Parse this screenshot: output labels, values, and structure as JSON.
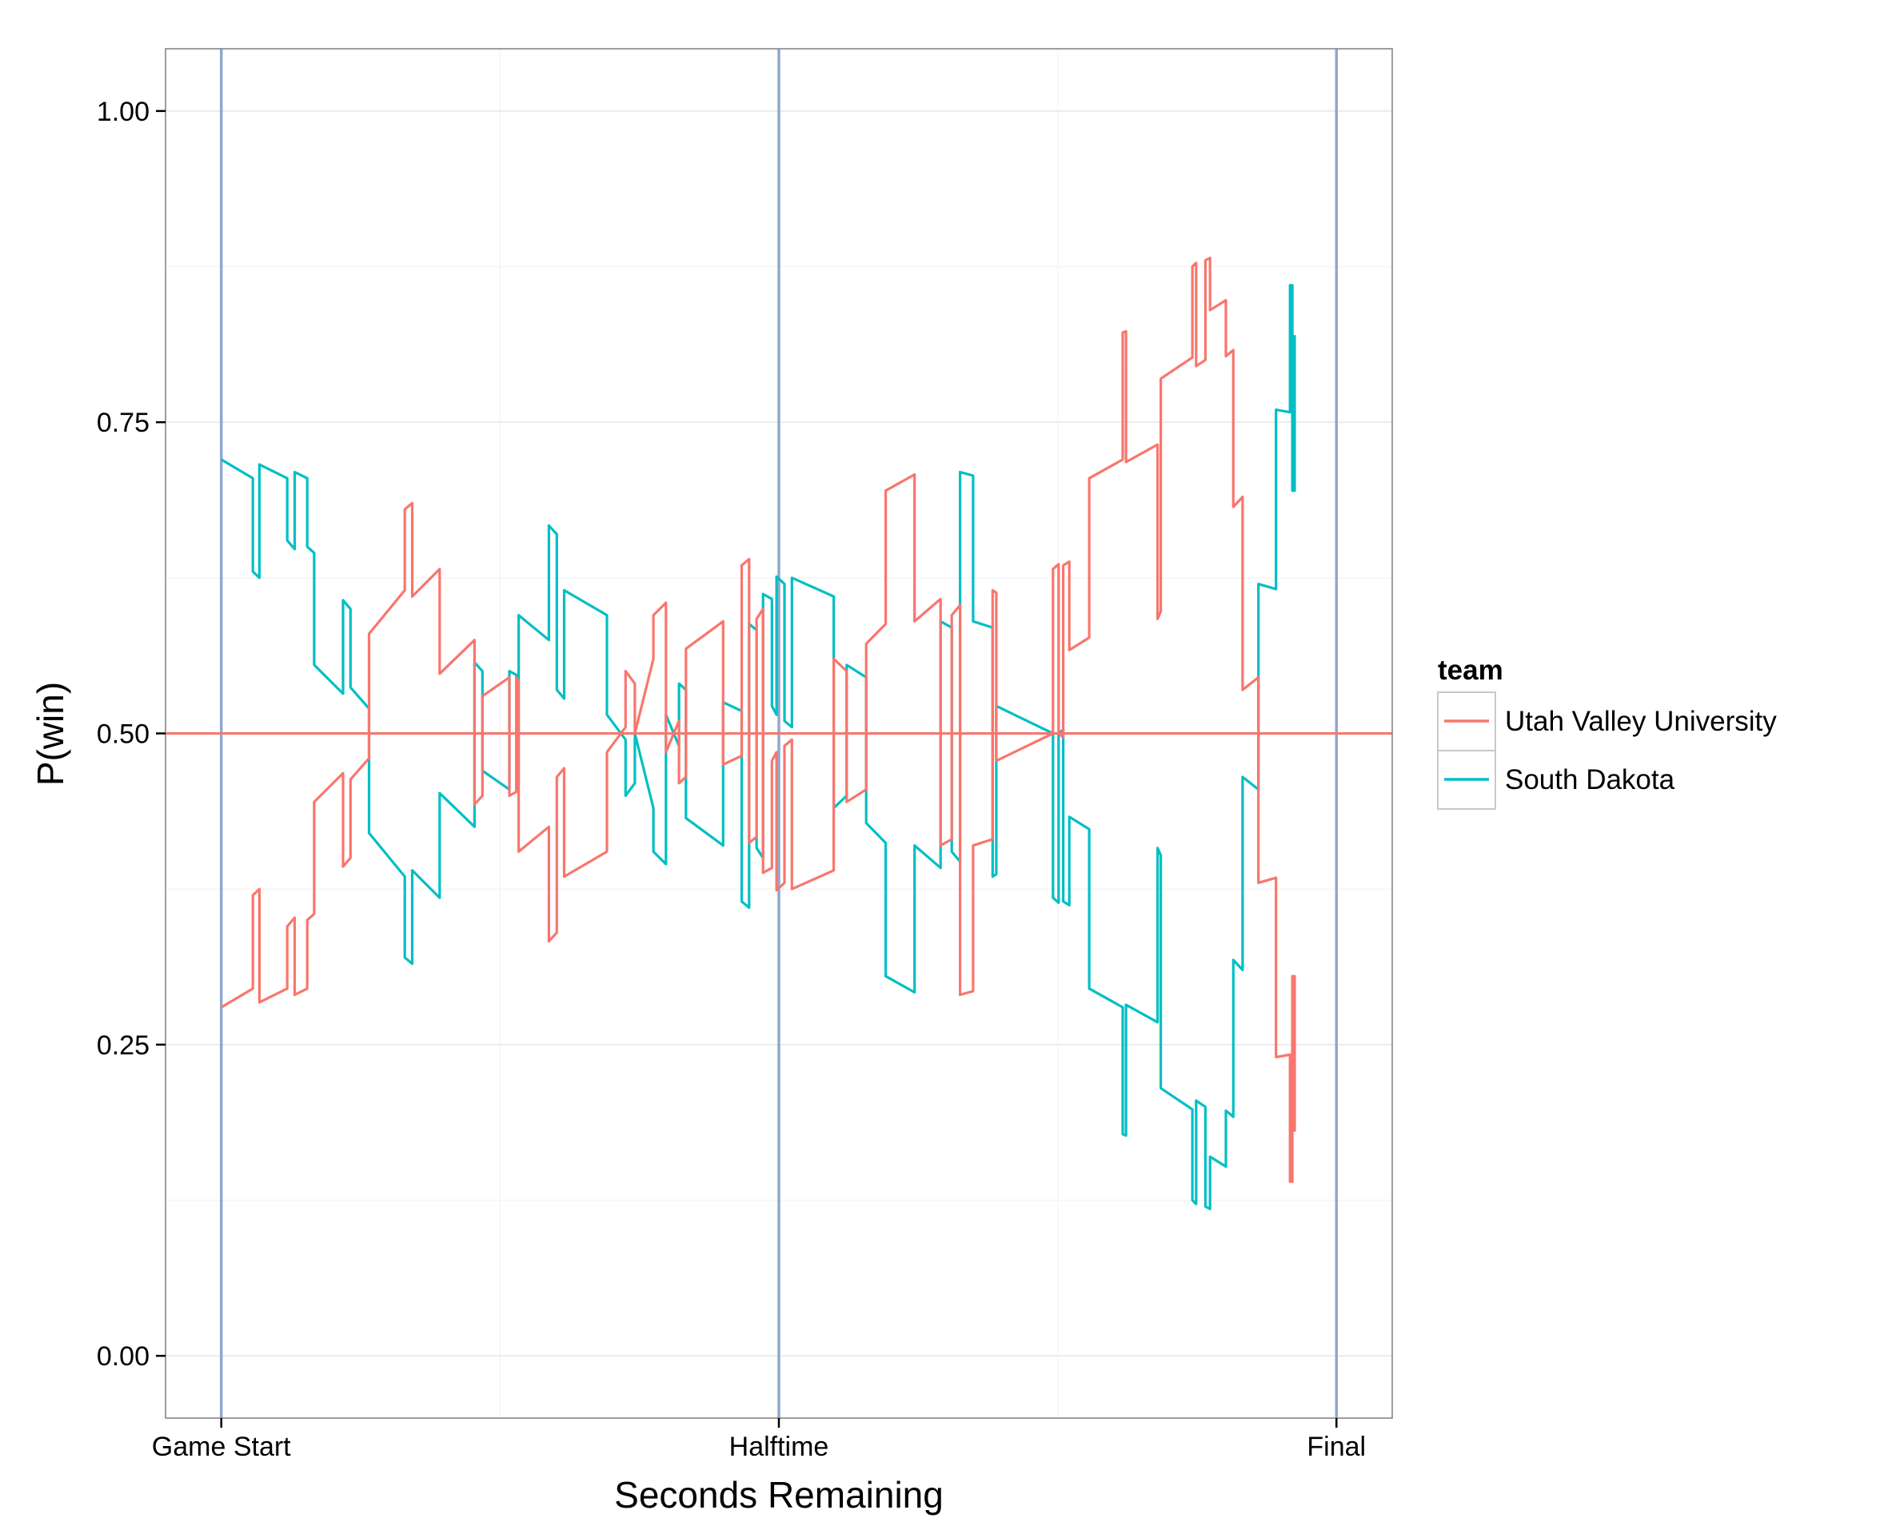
{
  "chart_data": {
    "type": "line",
    "title": "",
    "xlabel": "Seconds Remaining",
    "ylabel": "P(win)",
    "xlim": [
      -120,
      2520
    ],
    "ylim": [
      -0.05,
      1.05
    ],
    "grid": true,
    "legend_position": "right",
    "x_ticks": [
      {
        "value": 0,
        "label": "Game Start"
      },
      {
        "value": 1200,
        "label": "Halftime"
      },
      {
        "value": 2400,
        "label": "Final"
      }
    ],
    "y_ticks": [
      {
        "value": 0,
        "label": "0.00"
      },
      {
        "value": 0.25,
        "label": "0.25"
      },
      {
        "value": 0.5,
        "label": "0.50"
      },
      {
        "value": 0.75,
        "label": "0.75"
      },
      {
        "value": 1,
        "label": "1.00"
      }
    ],
    "vertical_markers": [
      0,
      1200,
      2400
    ],
    "horizontal_reference": 0.5,
    "legend": {
      "title": "team",
      "entries": [
        {
          "name": "Utah Valley University",
          "color": "#F8766D"
        },
        {
          "name": "South Dakota",
          "color": "#00BFC4"
        }
      ]
    },
    "colors": {
      "reference_line": "#F8766D",
      "vertical_marker": "#8FA8D0",
      "grid": "#EBEBEB",
      "border": "#7F7F7F"
    },
    "series": [
      {
        "name": "South Dakota",
        "color": "#00BFC4",
        "points": [
          [
            0,
            0.72
          ],
          [
            68,
            0.705
          ],
          [
            68,
            0.63
          ],
          [
            82,
            0.625
          ],
          [
            82,
            0.716
          ],
          [
            142,
            0.705
          ],
          [
            142,
            0.655
          ],
          [
            158,
            0.648
          ],
          [
            158,
            0.71
          ],
          [
            185,
            0.705
          ],
          [
            185,
            0.65
          ],
          [
            200,
            0.645
          ],
          [
            200,
            0.555
          ],
          [
            262,
            0.532
          ],
          [
            262,
            0.607
          ],
          [
            278,
            0.6
          ],
          [
            278,
            0.537
          ],
          [
            318,
            0.52
          ],
          [
            318,
            0.42
          ],
          [
            395,
            0.385
          ],
          [
            395,
            0.32
          ],
          [
            411,
            0.315
          ],
          [
            411,
            0.39
          ],
          [
            470,
            0.368
          ],
          [
            470,
            0.452
          ],
          [
            545,
            0.425
          ],
          [
            545,
            0.557
          ],
          [
            562,
            0.55
          ],
          [
            562,
            0.47
          ],
          [
            620,
            0.455
          ],
          [
            620,
            0.55
          ],
          [
            635,
            0.547
          ],
          [
            635,
            0.455
          ],
          [
            640,
            0.458
          ],
          [
            640,
            0.595
          ],
          [
            705,
            0.575
          ],
          [
            705,
            0.667
          ],
          [
            722,
            0.66
          ],
          [
            722,
            0.535
          ],
          [
            738,
            0.528
          ],
          [
            738,
            0.615
          ],
          [
            830,
            0.595
          ],
          [
            830,
            0.515
          ],
          [
            870,
            0.495
          ],
          [
            870,
            0.45
          ],
          [
            890,
            0.46
          ],
          [
            890,
            0.5
          ],
          [
            930,
            0.44
          ],
          [
            930,
            0.405
          ],
          [
            957,
            0.395
          ],
          [
            957,
            0.515
          ],
          [
            985,
            0.49
          ],
          [
            985,
            0.54
          ],
          [
            1000,
            0.535
          ],
          [
            1000,
            0.432
          ],
          [
            1080,
            0.41
          ],
          [
            1080,
            0.525
          ],
          [
            1120,
            0.518
          ],
          [
            1120,
            0.365
          ],
          [
            1136,
            0.36
          ],
          [
            1136,
            0.588
          ],
          [
            1152,
            0.583
          ],
          [
            1152,
            0.408
          ],
          [
            1166,
            0.4
          ],
          [
            1166,
            0.612
          ],
          [
            1185,
            0.608
          ],
          [
            1185,
            0.522
          ],
          [
            1195,
            0.515
          ],
          [
            1195,
            0.626
          ],
          [
            1212,
            0.62
          ],
          [
            1212,
            0.51
          ],
          [
            1228,
            0.505
          ],
          [
            1228,
            0.625
          ],
          [
            1318,
            0.61
          ],
          [
            1318,
            0.44
          ],
          [
            1346,
            0.45
          ],
          [
            1346,
            0.555
          ],
          [
            1388,
            0.545
          ],
          [
            1388,
            0.428
          ],
          [
            1430,
            0.412
          ],
          [
            1430,
            0.305
          ],
          [
            1492,
            0.292
          ],
          [
            1492,
            0.41
          ],
          [
            1548,
            0.392
          ],
          [
            1548,
            0.59
          ],
          [
            1572,
            0.585
          ],
          [
            1572,
            0.405
          ],
          [
            1590,
            0.397
          ],
          [
            1590,
            0.71
          ],
          [
            1618,
            0.707
          ],
          [
            1618,
            0.59
          ],
          [
            1660,
            0.585
          ],
          [
            1660,
            0.385
          ],
          [
            1668,
            0.387
          ],
          [
            1668,
            0.522
          ],
          [
            1790,
            0.5
          ],
          [
            1790,
            0.368
          ],
          [
            1802,
            0.364
          ],
          [
            1802,
            0.5
          ],
          [
            1812,
            0.503
          ],
          [
            1812,
            0.365
          ],
          [
            1825,
            0.362
          ],
          [
            1825,
            0.433
          ],
          [
            1868,
            0.423
          ],
          [
            1868,
            0.295
          ],
          [
            1940,
            0.28
          ],
          [
            1940,
            0.178
          ],
          [
            1947,
            0.177
          ],
          [
            1947,
            0.282
          ],
          [
            2015,
            0.268
          ],
          [
            2015,
            0.408
          ],
          [
            2022,
            0.402
          ],
          [
            2022,
            0.215
          ],
          [
            2090,
            0.198
          ],
          [
            2090,
            0.125
          ],
          [
            2098,
            0.122
          ],
          [
            2098,
            0.205
          ],
          [
            2118,
            0.2
          ],
          [
            2118,
            0.12
          ],
          [
            2128,
            0.118
          ],
          [
            2128,
            0.16
          ],
          [
            2162,
            0.152
          ],
          [
            2162,
            0.197
          ],
          [
            2178,
            0.192
          ],
          [
            2178,
            0.318
          ],
          [
            2198,
            0.31
          ],
          [
            2198,
            0.465
          ],
          [
            2232,
            0.455
          ],
          [
            2232,
            0.62
          ],
          [
            2270,
            0.616
          ],
          [
            2270,
            0.76
          ],
          [
            2300,
            0.758
          ],
          [
            2300,
            0.86
          ],
          [
            2305,
            0.86
          ],
          [
            2305,
            0.695
          ],
          [
            2310,
            0.695
          ],
          [
            2310,
            0.82
          ]
        ]
      },
      {
        "name": "Utah Valley University",
        "color": "#F8766D",
        "points": [
          [
            0,
            0.28
          ],
          [
            68,
            0.295
          ],
          [
            68,
            0.37
          ],
          [
            82,
            0.375
          ],
          [
            82,
            0.284
          ],
          [
            142,
            0.295
          ],
          [
            142,
            0.345
          ],
          [
            158,
            0.352
          ],
          [
            158,
            0.29
          ],
          [
            185,
            0.295
          ],
          [
            185,
            0.35
          ],
          [
            200,
            0.355
          ],
          [
            200,
            0.445
          ],
          [
            262,
            0.468
          ],
          [
            262,
            0.393
          ],
          [
            278,
            0.4
          ],
          [
            278,
            0.463
          ],
          [
            318,
            0.48
          ],
          [
            318,
            0.58
          ],
          [
            395,
            0.615
          ],
          [
            395,
            0.68
          ],
          [
            411,
            0.685
          ],
          [
            411,
            0.61
          ],
          [
            470,
            0.632
          ],
          [
            470,
            0.548
          ],
          [
            545,
            0.575
          ],
          [
            545,
            0.443
          ],
          [
            562,
            0.45
          ],
          [
            562,
            0.53
          ],
          [
            620,
            0.545
          ],
          [
            620,
            0.45
          ],
          [
            635,
            0.453
          ],
          [
            635,
            0.545
          ],
          [
            640,
            0.542
          ],
          [
            640,
            0.405
          ],
          [
            705,
            0.425
          ],
          [
            705,
            0.333
          ],
          [
            722,
            0.34
          ],
          [
            722,
            0.465
          ],
          [
            738,
            0.472
          ],
          [
            738,
            0.385
          ],
          [
            830,
            0.405
          ],
          [
            830,
            0.485
          ],
          [
            870,
            0.505
          ],
          [
            870,
            0.55
          ],
          [
            890,
            0.54
          ],
          [
            890,
            0.5
          ],
          [
            930,
            0.56
          ],
          [
            930,
            0.595
          ],
          [
            957,
            0.605
          ],
          [
            957,
            0.485
          ],
          [
            985,
            0.51
          ],
          [
            985,
            0.46
          ],
          [
            1000,
            0.465
          ],
          [
            1000,
            0.568
          ],
          [
            1080,
            0.59
          ],
          [
            1080,
            0.475
          ],
          [
            1120,
            0.482
          ],
          [
            1120,
            0.635
          ],
          [
            1136,
            0.64
          ],
          [
            1136,
            0.412
          ],
          [
            1152,
            0.417
          ],
          [
            1152,
            0.592
          ],
          [
            1166,
            0.6
          ],
          [
            1166,
            0.388
          ],
          [
            1185,
            0.392
          ],
          [
            1185,
            0.478
          ],
          [
            1195,
            0.485
          ],
          [
            1195,
            0.374
          ],
          [
            1212,
            0.38
          ],
          [
            1212,
            0.49
          ],
          [
            1228,
            0.495
          ],
          [
            1228,
            0.375
          ],
          [
            1318,
            0.39
          ],
          [
            1318,
            0.56
          ],
          [
            1346,
            0.55
          ],
          [
            1346,
            0.445
          ],
          [
            1388,
            0.455
          ],
          [
            1388,
            0.572
          ],
          [
            1430,
            0.588
          ],
          [
            1430,
            0.695
          ],
          [
            1492,
            0.708
          ],
          [
            1492,
            0.59
          ],
          [
            1548,
            0.608
          ],
          [
            1548,
            0.41
          ],
          [
            1572,
            0.415
          ],
          [
            1572,
            0.595
          ],
          [
            1590,
            0.603
          ],
          [
            1590,
            0.29
          ],
          [
            1618,
            0.293
          ],
          [
            1618,
            0.41
          ],
          [
            1660,
            0.415
          ],
          [
            1660,
            0.615
          ],
          [
            1668,
            0.613
          ],
          [
            1668,
            0.478
          ],
          [
            1790,
            0.5
          ],
          [
            1790,
            0.632
          ],
          [
            1802,
            0.636
          ],
          [
            1802,
            0.5
          ],
          [
            1812,
            0.497
          ],
          [
            1812,
            0.635
          ],
          [
            1825,
            0.638
          ],
          [
            1825,
            0.567
          ],
          [
            1868,
            0.577
          ],
          [
            1868,
            0.705
          ],
          [
            1940,
            0.72
          ],
          [
            1940,
            0.822
          ],
          [
            1947,
            0.823
          ],
          [
            1947,
            0.718
          ],
          [
            2015,
            0.732
          ],
          [
            2015,
            0.592
          ],
          [
            2022,
            0.598
          ],
          [
            2022,
            0.785
          ],
          [
            2090,
            0.802
          ],
          [
            2090,
            0.875
          ],
          [
            2098,
            0.878
          ],
          [
            2098,
            0.795
          ],
          [
            2118,
            0.8
          ],
          [
            2118,
            0.88
          ],
          [
            2128,
            0.882
          ],
          [
            2128,
            0.84
          ],
          [
            2162,
            0.848
          ],
          [
            2162,
            0.803
          ],
          [
            2178,
            0.808
          ],
          [
            2178,
            0.682
          ],
          [
            2198,
            0.69
          ],
          [
            2198,
            0.535
          ],
          [
            2232,
            0.545
          ],
          [
            2232,
            0.38
          ],
          [
            2270,
            0.384
          ],
          [
            2270,
            0.24
          ],
          [
            2300,
            0.242
          ],
          [
            2300,
            0.14
          ],
          [
            2305,
            0.14
          ],
          [
            2305,
            0.305
          ],
          [
            2310,
            0.305
          ],
          [
            2310,
            0.18
          ]
        ]
      }
    ]
  }
}
